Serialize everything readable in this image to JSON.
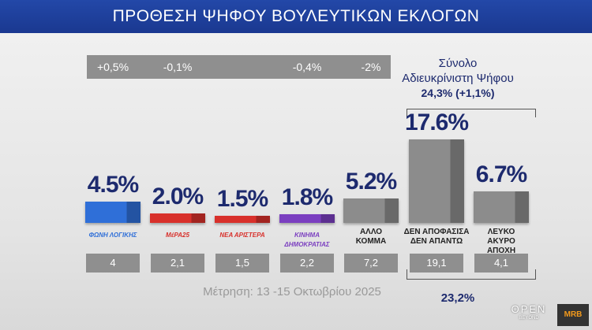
{
  "chart_data": {
    "type": "bar",
    "title": "ΠΡΟΘΕΣΗ ΨΗΦΟΥ ΒΟΥΛΕΥΤΙΚΩΝ ΕΚΛΟΓΩΝ",
    "categories": [
      "ΦΩΝΗ ΛΟΓΙΚΗΣ",
      "ΜέΡΑ25",
      "ΝΕΑ ΑΡΙΣΤΕΡΑ",
      "ΚΙΝΗΜΑ ΔΗΜΟΚΡΑΤΙΑΣ",
      "ΑΛΛΟ\nΚΟΜΜΑ",
      "ΔΕΝ ΑΠΟΦΑΣΙΣΑ\nΔΕΝ ΑΠΑΝΤΩ",
      "ΛΕΥΚΟ\nΑΚΥΡΟ\nΑΠΟΧΗ"
    ],
    "values": [
      4.5,
      2.0,
      1.5,
      1.8,
      5.2,
      17.6,
      6.7
    ],
    "value_labels": [
      "4.5%",
      "2.0%",
      "1.5%",
      "1.8%",
      "5.2%",
      "17.6%",
      "6.7%"
    ],
    "colors": [
      "#2f6fd8",
      "#d8302b",
      "#d8302b",
      "#7b3fc0",
      "#8c8c8c",
      "#8c8c8c",
      "#8c8c8c"
    ],
    "changes": [
      "+0,5%",
      "-0,1%",
      null,
      "-0,4%",
      "-2%"
    ],
    "previous_values": [
      "4",
      "2,1",
      "1,5",
      "2,2",
      "7,2",
      "19,1",
      "4,1"
    ],
    "undecided_title": "Σύνολο",
    "undecided_subtitle": "Αδιευκρίνιστη  Ψήφου",
    "undecided_total": "24,3% (+1,1%)",
    "previous_total": "23,2%",
    "footnote": "Μέτρηση: 13 -15 Οκτωβρίου 2025"
  },
  "logos": {
    "channel": "OPEN",
    "channel_sub": "BEYOND",
    "pollster": "MRB"
  }
}
